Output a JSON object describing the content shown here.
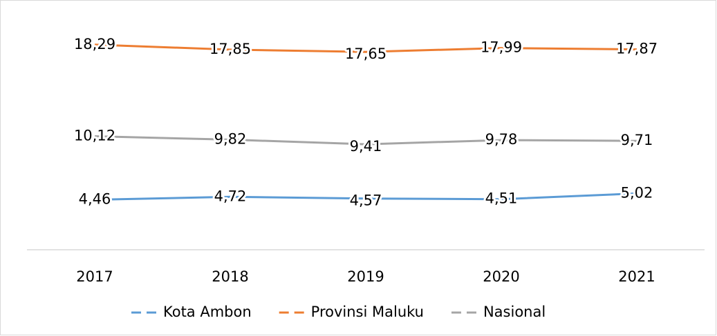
{
  "chart_data": {
    "type": "line",
    "categories": [
      "2017",
      "2018",
      "2019",
      "2020",
      "2021"
    ],
    "series": [
      {
        "name": "Kota Ambon",
        "color": "#5b9bd5",
        "values": [
          4.46,
          4.72,
          4.57,
          4.51,
          5.02
        ],
        "value_labels": [
          "4,46",
          "4,72",
          "4,57",
          "4,51",
          "5,02"
        ]
      },
      {
        "name": "Provinsi Maluku",
        "color": "#ed7d31",
        "values": [
          18.29,
          17.85,
          17.65,
          17.99,
          17.87
        ],
        "value_labels": [
          "18,29",
          "17,85",
          "17,65",
          "17,99",
          "17,87"
        ]
      },
      {
        "name": "Nasional",
        "color": "#a5a5a5",
        "values": [
          10.12,
          9.82,
          9.41,
          9.78,
          9.71
        ],
        "value_labels": [
          "10,12",
          "9,82",
          "9,41",
          "9,78",
          "9,71"
        ]
      }
    ],
    "ylim": [
      0,
      20
    ],
    "grid": false,
    "legend": "bottom"
  }
}
